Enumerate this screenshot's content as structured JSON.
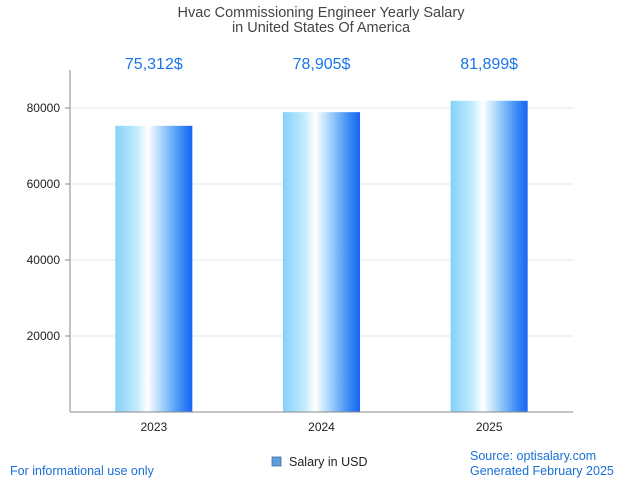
{
  "chart_data": {
    "type": "bar",
    "title": "Hvac Commissioning Engineer Yearly Salary",
    "subtitle": "in United States Of America",
    "categories": [
      "2023",
      "2024",
      "2025"
    ],
    "series": [
      {
        "name": "Salary in USD",
        "values": [
          75312,
          78905,
          81899
        ]
      }
    ],
    "data_labels": [
      "75,312$",
      "78,905$",
      "81,899$"
    ],
    "yticks": [
      20000,
      40000,
      60000,
      80000
    ],
    "ylim": [
      0,
      90000
    ],
    "grid": true,
    "legend_position": "bottom-center",
    "colors": {
      "bar_light": "#aee0fb",
      "bar_dark": "#1a6ef5",
      "label": "#1a75e8"
    }
  },
  "footer": {
    "note": "For informational use only",
    "source": "Source: optisalary.com",
    "generated": "Generated February 2025"
  }
}
